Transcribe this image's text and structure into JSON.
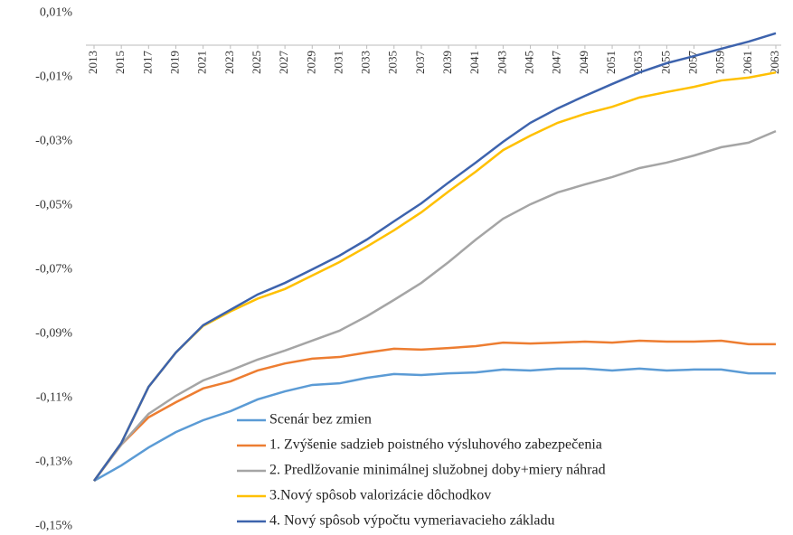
{
  "chart_data": {
    "type": "line",
    "categories": [
      "2013",
      "2015",
      "2017",
      "2019",
      "2021",
      "2023",
      "2025",
      "2027",
      "2029",
      "2031",
      "2033",
      "2035",
      "2037",
      "2039",
      "2041",
      "2043",
      "2045",
      "2047",
      "2049",
      "2051",
      "2053",
      "2055",
      "2057",
      "2059",
      "2061",
      "2063"
    ],
    "ylim": [
      -0.15,
      0.01
    ],
    "yticks": [
      {
        "value": 0.01,
        "label": "0,01%"
      },
      {
        "value": -0.01,
        "label": "-0,01%"
      },
      {
        "value": -0.03,
        "label": "-0,03%"
      },
      {
        "value": -0.05,
        "label": "-0,05%"
      },
      {
        "value": -0.07,
        "label": "-0,07%"
      },
      {
        "value": -0.09,
        "label": "-0,09%"
      },
      {
        "value": -0.11,
        "label": "-0,11%"
      },
      {
        "value": -0.13,
        "label": "-0,13%"
      },
      {
        "value": -0.15,
        "label": "-0,15%"
      }
    ],
    "grid": false,
    "legend": "bottom",
    "series": [
      {
        "name": "Scenár bez zmien",
        "color": "#5b9bd5",
        "values": [
          -0.1358,
          -0.131,
          -0.1254,
          -0.1206,
          -0.1169,
          -0.1141,
          -0.1104,
          -0.1079,
          -0.1059,
          -0.1054,
          -0.1037,
          -0.1025,
          -0.1028,
          -0.1023,
          -0.102,
          -0.1011,
          -0.1014,
          -0.1008,
          -0.1008,
          -0.1014,
          -0.1008,
          -0.1014,
          -0.1011,
          -0.1011,
          -0.1023,
          -0.1023
        ]
      },
      {
        "name": "1. Zvýšenie sadzieb poistného výsluhového zabezpečenia",
        "color": "#ed7d31",
        "values": [
          -0.1358,
          -0.1245,
          -0.116,
          -0.1113,
          -0.107,
          -0.1048,
          -0.1014,
          -0.0992,
          -0.0977,
          -0.0972,
          -0.0958,
          -0.0946,
          -0.0949,
          -0.0944,
          -0.0938,
          -0.0927,
          -0.093,
          -0.0927,
          -0.0924,
          -0.0927,
          -0.0921,
          -0.0924,
          -0.0924,
          -0.0921,
          -0.0932,
          -0.0932
        ]
      },
      {
        "name": "2. Predlžovanie minimálnej služobnej doby+miery náhrad",
        "color": "#a5a5a5",
        "values": [
          -0.1358,
          -0.1245,
          -0.1149,
          -0.1093,
          -0.1045,
          -0.1014,
          -0.098,
          -0.0952,
          -0.0921,
          -0.089,
          -0.0845,
          -0.0794,
          -0.0741,
          -0.0676,
          -0.0606,
          -0.0541,
          -0.0496,
          -0.0459,
          -0.0434,
          -0.0411,
          -0.0383,
          -0.0366,
          -0.0344,
          -0.0318,
          -0.0304,
          -0.0268
        ]
      },
      {
        "name": "3.Nový spôsob valorizácie dôchodkov",
        "color": "#ffc000",
        "values": [
          -0.1358,
          -0.124,
          -0.1065,
          -0.0958,
          -0.0875,
          -0.083,
          -0.079,
          -0.076,
          -0.0718,
          -0.0676,
          -0.0628,
          -0.0577,
          -0.0521,
          -0.0456,
          -0.0394,
          -0.0327,
          -0.0282,
          -0.0242,
          -0.0214,
          -0.0192,
          -0.0163,
          -0.0146,
          -0.013,
          -0.011,
          -0.0101,
          -0.0085
        ]
      },
      {
        "name": "4. Nový spôsob výpočtu vymeriavacieho základu",
        "color": "#3d63ad",
        "values": [
          -0.1358,
          -0.124,
          -0.1065,
          -0.0958,
          -0.0873,
          -0.0825,
          -0.0777,
          -0.0741,
          -0.0699,
          -0.0656,
          -0.0606,
          -0.0549,
          -0.0493,
          -0.0428,
          -0.0366,
          -0.0301,
          -0.0242,
          -0.0197,
          -0.0158,
          -0.0121,
          -0.0085,
          -0.0056,
          -0.0034,
          -0.0011,
          0.0011,
          0.0037
        ]
      }
    ]
  }
}
